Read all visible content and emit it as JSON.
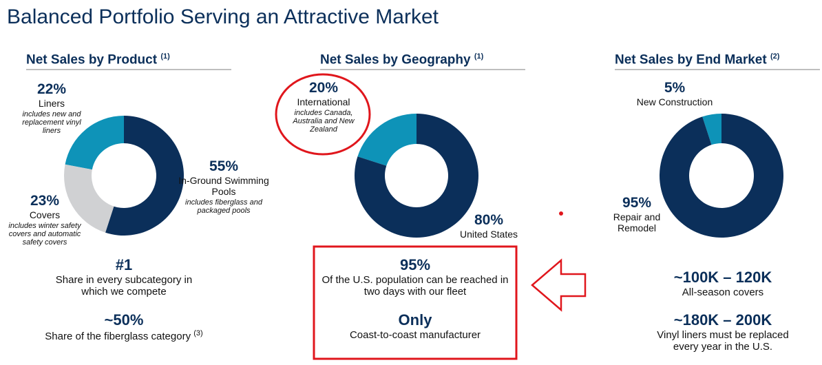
{
  "title": "Balanced Portfolio Serving an Attractive Market",
  "chart_data": [
    {
      "type": "donut",
      "title": "Net Sales by Product",
      "footnote": "(1)",
      "categories": [
        "In-Ground Swimming Pools",
        "Covers",
        "Liners"
      ],
      "values": [
        55,
        23,
        22
      ],
      "value_labels": [
        "55%",
        "23%",
        "22%"
      ],
      "descriptions": [
        "includes fiberglass and packaged pools",
        "includes winter safety covers and automatic safety covers",
        "includes new and replacement vinyl liners"
      ],
      "colors": [
        "#0b2f5a",
        "#d0d1d3",
        "#0e93b8"
      ]
    },
    {
      "type": "donut",
      "title": "Net Sales by Geography",
      "footnote": "(1)",
      "categories": [
        "United States",
        "International"
      ],
      "values": [
        80,
        20
      ],
      "value_labels": [
        "80%",
        "20%"
      ],
      "descriptions": [
        null,
        "includes Canada, Australia and New Zealand"
      ],
      "colors": [
        "#0b2f5a",
        "#0e93b8"
      ]
    },
    {
      "type": "donut",
      "title": "Net Sales by End Market",
      "footnote": "(2)",
      "categories": [
        "Repair and Remodel",
        "New Construction"
      ],
      "values": [
        95,
        5
      ],
      "value_labels": [
        "95%",
        "5%"
      ],
      "descriptions": [
        null,
        null
      ],
      "colors": [
        "#0b2f5a",
        "#0e93b8"
      ]
    }
  ],
  "highlights": [
    [
      {
        "figure": "#1",
        "text": "Share in every subcategory in which we compete"
      },
      {
        "figure": "~50%",
        "text": "Share of the fiberglass category",
        "footnote": "(3)"
      }
    ],
    [
      {
        "figure": "95%",
        "text": "Of the U.S. population can be reached in two days with our fleet"
      },
      {
        "figure": "Only",
        "text": "Coast-to-coast manufacturer"
      }
    ],
    [
      {
        "figure": "~100K – 120K",
        "text": "All-season covers"
      },
      {
        "figure": "~180K – 200K",
        "text": "Vinyl liners must be replaced every year in the U.S."
      }
    ]
  ]
}
